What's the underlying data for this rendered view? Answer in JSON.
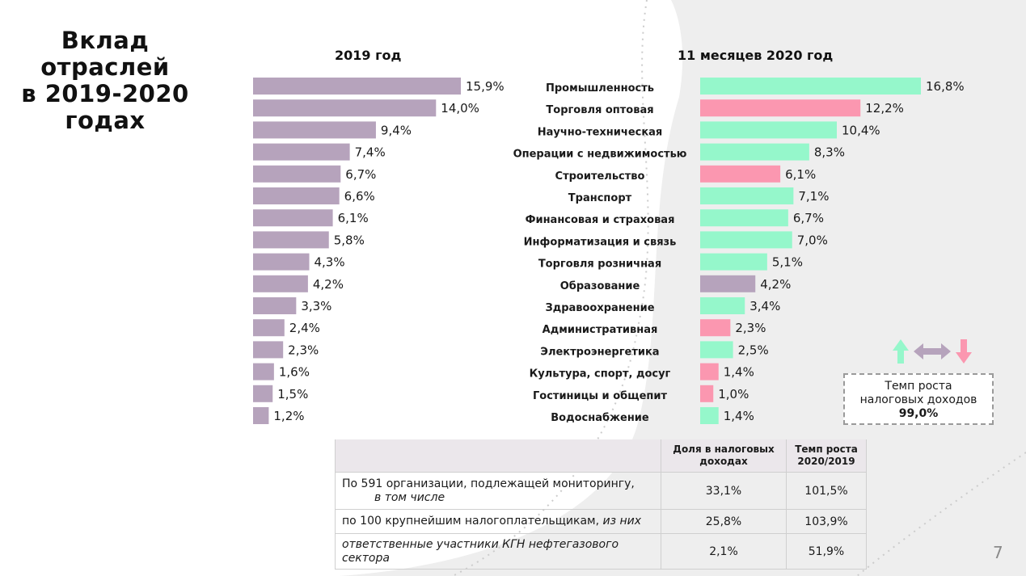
{
  "title_lines": [
    "Вклад",
    "отраслей",
    "в 2019-2020",
    "годах"
  ],
  "page_number": "7",
  "colors": {
    "purple": "#b6a3bc",
    "green": "#95f7cb",
    "pink": "#fb97b0",
    "grey_bg": "#eeeeee"
  },
  "chart_data": [
    {
      "type": "bar",
      "orientation": "horizontal",
      "title": "2019 год",
      "values": [
        15.9,
        14.0,
        9.4,
        7.4,
        6.7,
        6.6,
        6.1,
        5.8,
        4.3,
        4.2,
        3.3,
        2.4,
        2.3,
        1.6,
        1.5,
        1.2
      ],
      "value_labels": [
        "15,9%",
        "14,0%",
        "9,4%",
        "7,4%",
        "6,7%",
        "6,6%",
        "6,1%",
        "5,8%",
        "4,3%",
        "4,2%",
        "3,3%",
        "2,4%",
        "2,3%",
        "1,6%",
        "1,5%",
        "1,2%"
      ],
      "color": "#b6a3bc",
      "grid": false
    },
    {
      "type": "bar",
      "orientation": "horizontal",
      "title": "11 месяцев 2020 год",
      "categories": [
        "Промышленность",
        "Торговля оптовая",
        "Научно-техническая",
        "Операции с недвижимостью",
        "Строительство",
        "Транспорт",
        "Финансовая и страховая",
        "Информатизация и связь",
        "Торговля розничная",
        "Образование",
        "Здравоохранение",
        "Административная",
        "Электроэнергетика",
        "Культура, спорт, досуг",
        "Гостиницы и общепит",
        "Водоснабжение"
      ],
      "values": [
        16.8,
        12.2,
        10.4,
        8.3,
        6.1,
        7.1,
        6.7,
        7.0,
        5.1,
        4.2,
        3.4,
        2.3,
        2.5,
        1.4,
        1.0,
        1.4
      ],
      "value_labels": [
        "16,8%",
        "12,2%",
        "10,4%",
        "8,3%",
        "6,1%",
        "7,1%",
        "6,7%",
        "7,0%",
        "5,1%",
        "4,2%",
        "3,4%",
        "2,3%",
        "2,5%",
        "1,4%",
        "1,0%",
        "1,4%"
      ],
      "growth": [
        "up",
        "down",
        "up",
        "up",
        "down",
        "up",
        "up",
        "up",
        "up",
        "flat",
        "up",
        "down",
        "up",
        "down",
        "down",
        "up"
      ],
      "grid": false
    }
  ],
  "legend": {
    "line1": "Темп роста",
    "line2": "налоговых доходов",
    "value": "99,0%"
  },
  "table": {
    "headers": [
      "Доля в налоговых доходах",
      "Темп роста 2020/2019"
    ],
    "rows": [
      {
        "label": "По 591 организации, подлежащей мониторингу,",
        "label_italic": "в том числе",
        "share": "33,1%",
        "growth": "101,5%"
      },
      {
        "label": "по 100 крупнейшим налогоплательщикам,",
        "label_italic": "из них",
        "share": "25,8%",
        "growth": "103,9%"
      },
      {
        "label": "",
        "label_italic": "ответственные участники КГН нефтегазового сектора",
        "share": "2,1%",
        "growth": "51,9%"
      }
    ]
  }
}
